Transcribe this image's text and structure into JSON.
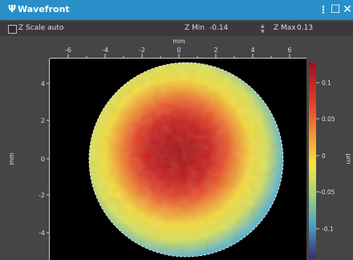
{
  "window": {
    "title": "Wavefront",
    "app_icon": "Ψ",
    "controls": {
      "menu_glyph": "⋮",
      "maximize_glyph": "☐",
      "close_glyph": "✕"
    }
  },
  "toolbar": {
    "zscale_auto_label": "Z Scale auto",
    "zscale_auto_checked": false,
    "zmin_label": "Z Min",
    "zmin_value": "-0.14",
    "zmax_label": "Z Max",
    "zmax_value": "0.13"
  },
  "plot": {
    "x_axis_label": "mm",
    "y_axis_label": "mm",
    "x_ticks": [
      "-6",
      "-4",
      "-2",
      "0",
      "2",
      "4",
      "6"
    ],
    "y_ticks": [
      "4",
      "2",
      "0",
      "-2",
      "-4"
    ],
    "colorbar_ticks": [
      "0.1",
      "0.05",
      "0",
      "-0.05",
      "-0.1"
    ],
    "colorbar_unit": "μm",
    "colors": {
      "background": "#000000",
      "high": "#b0141e",
      "mid": "#f5e63c",
      "low": "#4a3a8c"
    }
  }
}
